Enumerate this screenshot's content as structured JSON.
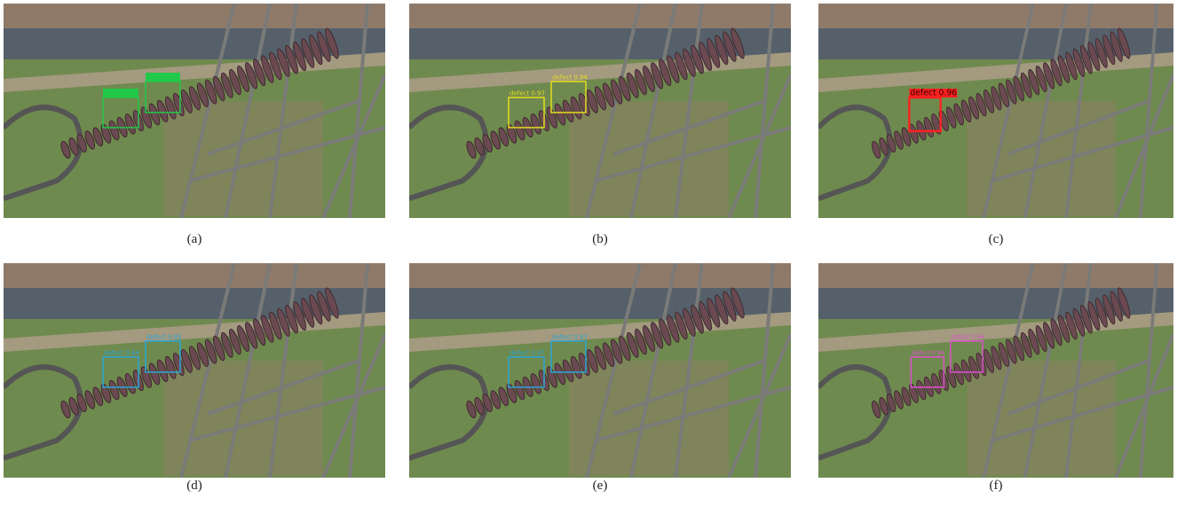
{
  "panels": [
    {
      "caption": "(a)",
      "box_color": "#22c84a",
      "label_fill": true,
      "detections": [
        {
          "label": null
        },
        {
          "label": null
        }
      ]
    },
    {
      "caption": "(b)",
      "box_color": "#e6dc1e",
      "label_fill": false,
      "detections": [
        {
          "label": "defect 0.97"
        },
        {
          "label": "defect 0.94"
        }
      ]
    },
    {
      "caption": "(c)",
      "box_color": "#ff2020",
      "label_fill": true,
      "detections": [
        {
          "label": "defect 0.96"
        }
      ]
    },
    {
      "caption": "(d)",
      "box_color": "#2aa6d8",
      "label_fill": false,
      "detections": [
        {
          "label": "defect 0.84"
        },
        {
          "label": "defect 0.85"
        }
      ]
    },
    {
      "caption": "(e)",
      "box_color": "#2aa6d8",
      "label_fill": false,
      "detections": [
        {
          "label": "defect 0.97"
        },
        {
          "label": "defect 0.97"
        }
      ]
    },
    {
      "caption": "(f)",
      "box_color": "#e050d0",
      "label_fill": false,
      "detections": [
        {
          "label": "defect 0.94"
        },
        {
          "label": "defect 0.94"
        }
      ]
    }
  ]
}
